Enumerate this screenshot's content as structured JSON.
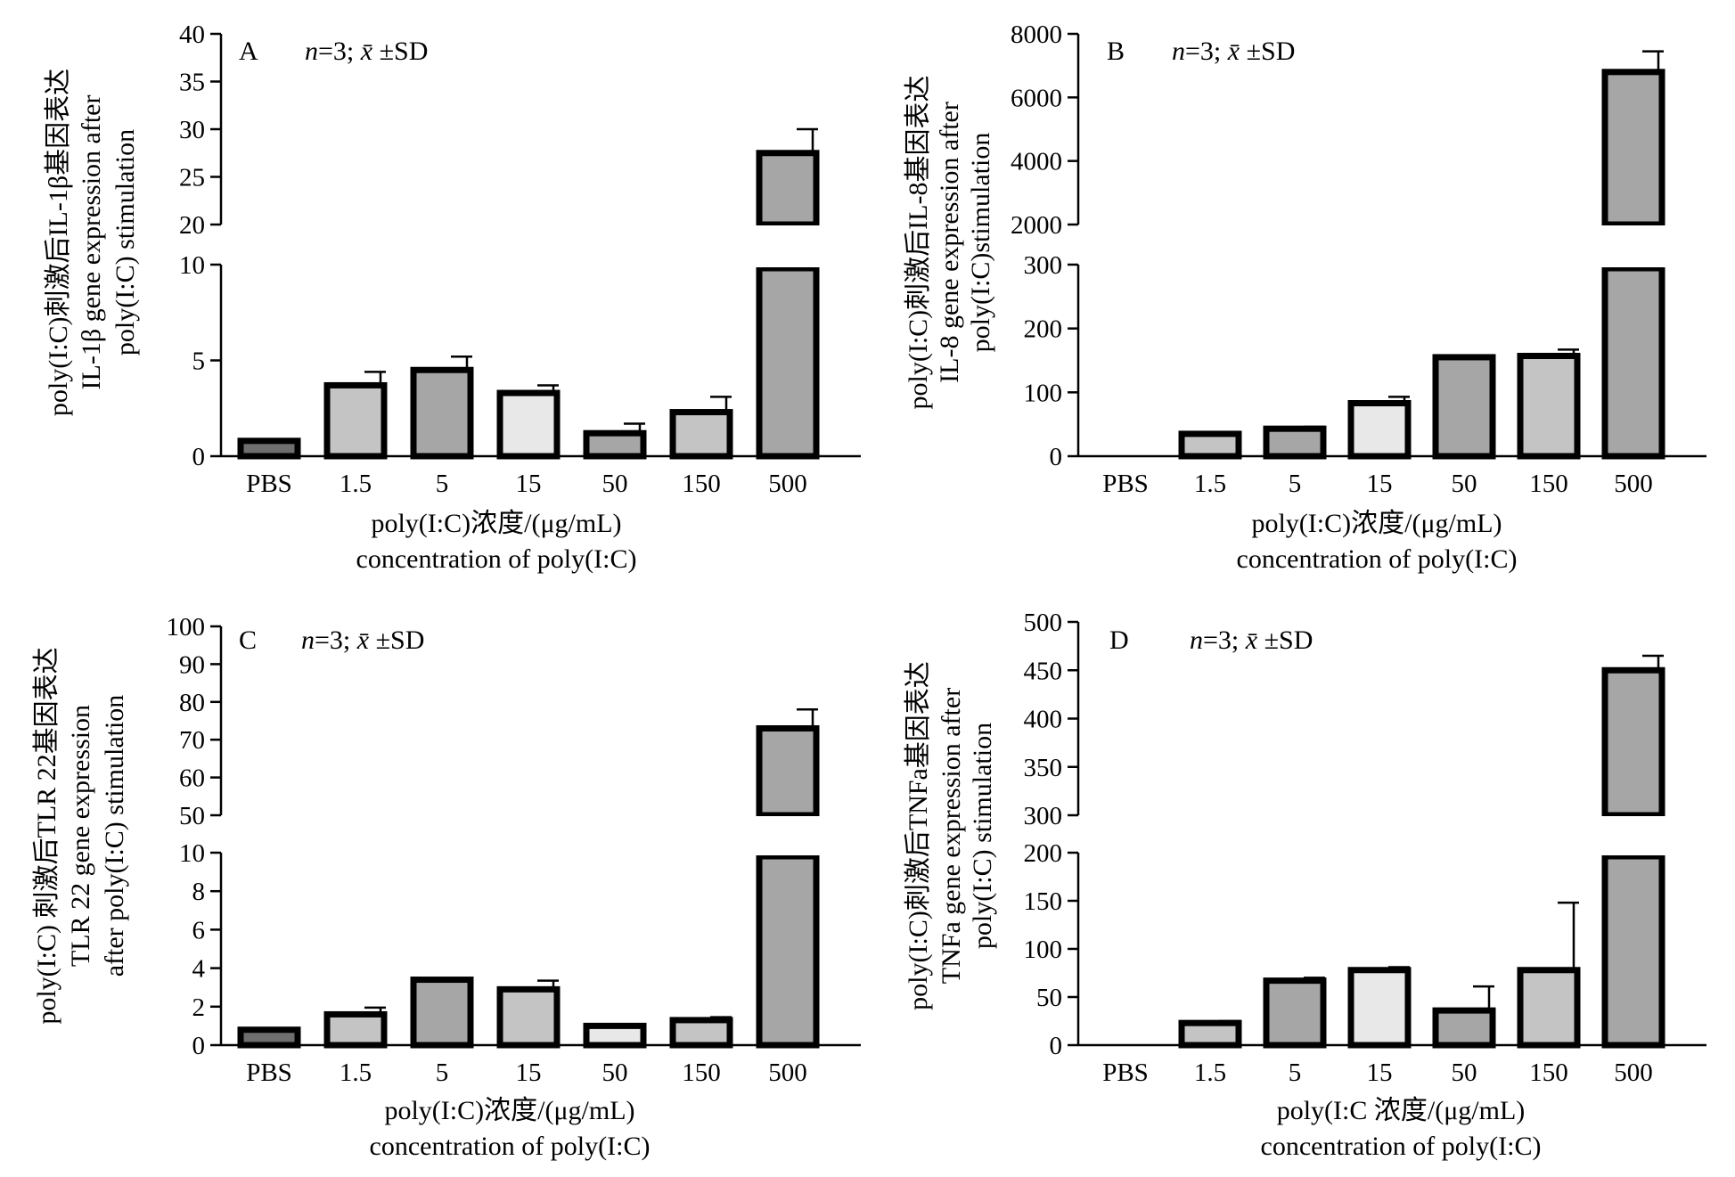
{
  "chart_data": [
    {
      "panel_label": "A",
      "type": "bar",
      "stat_note": "n=3; x̄ ±SD",
      "ylabel": [
        "poly(I:C)刺激后IL-1β基因表达",
        "IL-1β gene expression after",
        "poly(I:C) stimulation"
      ],
      "xlabel": [
        "poly(I:C)浓度/(μg/mL)",
        "concentration of poly(I:C)"
      ],
      "categories": [
        "PBS",
        "1.5",
        "5",
        "15",
        "50",
        "150",
        "500"
      ],
      "values": [
        0.8,
        3.7,
        4.5,
        3.3,
        1.2,
        2.3,
        27.5
      ],
      "errors": [
        0,
        0.7,
        0.7,
        0.4,
        0.5,
        0.8,
        2.5
      ],
      "bar_fills": [
        "#6e6e6e",
        "#c4c4c4",
        "#a6a6a6",
        "#e8e8e8",
        "#a6a6a6",
        "#c4c4c4",
        "#a6a6a6"
      ],
      "y_axis_lower": {
        "range": [
          0,
          10
        ],
        "ticks": [
          0,
          5,
          10
        ]
      },
      "y_axis_upper": {
        "range": [
          20,
          40
        ],
        "ticks": [
          20,
          25,
          30,
          35,
          40
        ]
      }
    },
    {
      "panel_label": "B",
      "type": "bar",
      "stat_note": "n=3; x̄ ±SD",
      "ylabel": [
        "poly(I:C)刺激后IL-8基因表达",
        "IL-8 gene expression after",
        "poly(I:C)stimulation"
      ],
      "xlabel": [
        "poly(I:C)浓度/(μg/mL)",
        "concentration of poly(I:C)"
      ],
      "categories": [
        "PBS",
        "1.5",
        "5",
        "15",
        "50",
        "150",
        "500"
      ],
      "values": [
        0,
        35,
        43,
        83,
        155,
        157,
        6800
      ],
      "errors": [
        0,
        3,
        3,
        10,
        3,
        10,
        650
      ],
      "bar_fills": [
        "#6e6e6e",
        "#c4c4c4",
        "#a6a6a6",
        "#e8e8e8",
        "#a6a6a6",
        "#c4c4c4",
        "#a6a6a6"
      ],
      "y_axis_lower": {
        "range": [
          0,
          300
        ],
        "ticks": [
          0,
          100,
          200,
          300
        ]
      },
      "y_axis_upper": {
        "range": [
          2000,
          8000
        ],
        "ticks": [
          2000,
          4000,
          6000,
          8000
        ]
      }
    },
    {
      "panel_label": "C",
      "type": "bar",
      "stat_note": "n=3; x̄ ±SD",
      "ylabel": [
        "poly(I:C) 刺激后TLR 22基因表达",
        "TLR 22 gene expression",
        "after poly(I:C) stimulation"
      ],
      "xlabel": [
        "poly(I:C)浓度/(μg/mL)",
        "concentration of poly(I:C)"
      ],
      "categories": [
        "PBS",
        "1.5",
        "5",
        "15",
        "50",
        "150",
        "500"
      ],
      "values": [
        0.8,
        1.6,
        3.4,
        2.9,
        1.0,
        1.3,
        73
      ],
      "errors": [
        0,
        0.35,
        0.05,
        0.45,
        0.1,
        0.15,
        5
      ],
      "bar_fills": [
        "#6e6e6e",
        "#c4c4c4",
        "#a6a6a6",
        "#c4c4c4",
        "#e8e8e8",
        "#c4c4c4",
        "#a6a6a6"
      ],
      "y_axis_lower": {
        "range": [
          0,
          10
        ],
        "ticks": [
          0,
          2,
          4,
          6,
          8,
          10
        ]
      },
      "y_axis_upper": {
        "range": [
          50,
          100
        ],
        "ticks": [
          50,
          60,
          70,
          80,
          90,
          100
        ]
      }
    },
    {
      "panel_label": "D",
      "type": "bar",
      "stat_note": "n=3; x̄ ±SD",
      "ylabel": [
        "poly(I:C)刺激后TNFa基因表达",
        "TNFa gene expression after",
        "poly(I:C) stimulation"
      ],
      "xlabel": [
        "poly(I:C 浓度/(μg/mL)",
        "concentration of poly(I:C)"
      ],
      "categories": [
        "PBS",
        "1.5",
        "5",
        "15",
        "50",
        "150",
        "500"
      ],
      "values": [
        0,
        23,
        67,
        78,
        36,
        78,
        450
      ],
      "errors": [
        0,
        2,
        3,
        3,
        25,
        70,
        15
      ],
      "bar_fills": [
        "#6e6e6e",
        "#c4c4c4",
        "#a6a6a6",
        "#e8e8e8",
        "#a6a6a6",
        "#c4c4c4",
        "#a6a6a6"
      ],
      "y_axis_lower": {
        "range": [
          0,
          200
        ],
        "ticks": [
          0,
          50,
          100,
          150,
          200
        ]
      },
      "y_axis_upper": {
        "range": [
          300,
          500
        ],
        "ticks": [
          300,
          350,
          400,
          450,
          500
        ]
      }
    }
  ]
}
